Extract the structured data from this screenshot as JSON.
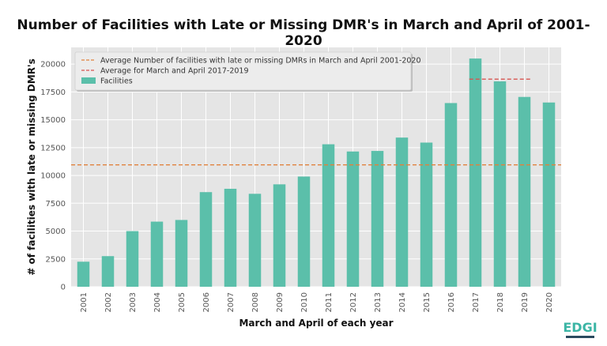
{
  "chart_data": {
    "type": "bar",
    "title": "Number of Facilities with Late or Missing DMR's in March and April of 2001-2020",
    "xlabel": "March and April of each year",
    "ylabel": "# of facilities with late or missing DMR's",
    "categories": [
      "2001",
      "2002",
      "2003",
      "2004",
      "2005",
      "2006",
      "2007",
      "2008",
      "2009",
      "2010",
      "2011",
      "2012",
      "2013",
      "2014",
      "2015",
      "2016",
      "2017",
      "2018",
      "2019",
      "2020"
    ],
    "series": [
      {
        "name": "Facilities",
        "color": "#5bbfaa",
        "values": [
          2250,
          2750,
          5000,
          5850,
          6000,
          8500,
          8800,
          8350,
          9200,
          9900,
          12800,
          12150,
          12200,
          13400,
          12950,
          16500,
          20500,
          18450,
          17050,
          16550
        ]
      }
    ],
    "reference_lines": [
      {
        "name": "Average Number of facilities with late or missing DMRs in March and April 2001-2020",
        "value": 10950,
        "from": "2001",
        "to": "2020",
        "color": "#e0823d",
        "style": "dashed"
      },
      {
        "name": "Average for March and April 2017-2019",
        "value": 18650,
        "from": "2017",
        "to": "2019",
        "color": "#d9534f",
        "style": "dashed"
      }
    ],
    "ylim": [
      0,
      21500
    ],
    "yticks": [
      0,
      2500,
      5000,
      7500,
      10000,
      12500,
      15000,
      17500,
      20000
    ],
    "ytick_labels": [
      "0",
      "2500",
      "5000",
      "7500",
      "10000",
      "12500",
      "15000",
      "17500",
      "20000"
    ],
    "grid": true,
    "legend_position": "top-left",
    "background": "#e5e5e5"
  },
  "logo": {
    "text": "EDGI",
    "color": "#3bb5a5"
  }
}
